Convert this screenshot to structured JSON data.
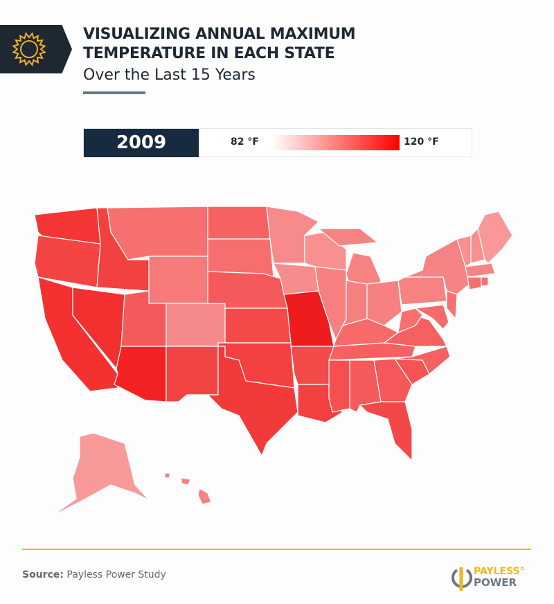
{
  "header": {
    "title_line1": "VISUALIZING ANNUAL MAXIMUM",
    "title_line2": "TEMPERATURE IN EACH STATE",
    "subtitle": "Over the Last 15 Years",
    "icon": "sun-icon"
  },
  "legend": {
    "year": "2009",
    "min_label": "82 °F",
    "max_label": "120 °F",
    "min_color": "#ffffff",
    "max_color": "#ff0000"
  },
  "states": {
    "WA": "#f43535",
    "OR": "#f44444",
    "CA": "#f43030",
    "NV": "#f23030",
    "ID": "#f34040",
    "MT": "#f77070",
    "WY": "#f67a7a",
    "UT": "#f55a5a",
    "AZ": "#f32222",
    "CO": "#f68a8a",
    "NM": "#f34444",
    "ND": "#f66262",
    "SD": "#f76e6e",
    "NE": "#f45a5a",
    "KS": "#f44a4a",
    "OK": "#f44040",
    "TX": "#f33a3a",
    "MN": "#f78a8a",
    "IA": "#f78c8c",
    "MO": "#ee1c1c",
    "AR": "#f34a4a",
    "LA": "#f34040",
    "WI": "#f89090",
    "IL": "#f78080",
    "MI": "#f78282",
    "IN": "#f78080",
    "OH": "#f78080",
    "KY": "#f66a6a",
    "TN": "#f66060",
    "MS": "#f45050",
    "AL": "#f55a5a",
    "GA": "#f55858",
    "FL": "#f44848",
    "SC": "#f55454",
    "NC": "#f56060",
    "VA": "#f56060",
    "WV": "#f67070",
    "PA": "#f78282",
    "NY": "#f78484",
    "MD": "#f56a6a",
    "NJ": "#f57070",
    "VT": "#f89090",
    "NH": "#f89090",
    "ME": "#f89898",
    "MA": "#f78484",
    "CT": "#f67070",
    "RI": "#f67070",
    "AK": "#f99a9a",
    "HI": "#f78080"
  },
  "footer": {
    "source_label": "Source:",
    "source_text": "Payless Power Study",
    "logo_line1": "PAYLESS°",
    "logo_line2": "POWER",
    "accent": "#f3b324"
  }
}
